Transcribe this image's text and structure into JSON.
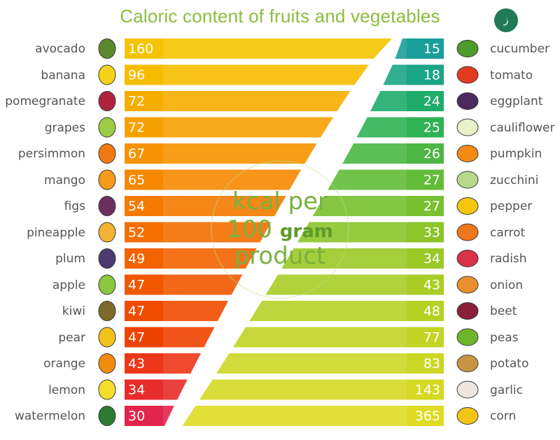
{
  "chart_data": {
    "type": "bar",
    "title": "Caloric content of fruits and vegetables",
    "unit_line1": "kcal per",
    "unit_num": "100",
    "unit_word": "gram",
    "unit_line3": "product",
    "logo_text": "ز",
    "series": [
      {
        "items": [
          {
            "label": "avocado",
            "value": 160,
            "color": "#f5c400",
            "icon": "avocado-icon",
            "iconColor": "#5a8a2b"
          },
          {
            "label": "banana",
            "value": 96,
            "color": "#f6bd00",
            "icon": "banana-icon",
            "iconColor": "#f7d21a"
          },
          {
            "label": "pomegranate",
            "value": 72,
            "color": "#f6ad00",
            "icon": "pomegranate-icon",
            "iconColor": "#b0233c"
          },
          {
            "label": "grapes",
            "value": 72,
            "color": "#f6a000",
            "icon": "grapes-icon",
            "iconColor": "#9ccc43"
          },
          {
            "label": "persimmon",
            "value": 67,
            "color": "#f69300",
            "icon": "persimmon-icon",
            "iconColor": "#f07a12"
          },
          {
            "label": "mango",
            "value": 65,
            "color": "#f68800",
            "icon": "mango-icon",
            "iconColor": "#f59a1a"
          },
          {
            "label": "figs",
            "value": 54,
            "color": "#f57a00",
            "icon": "fig-icon",
            "iconColor": "#6b2f5e"
          },
          {
            "label": "pineapple",
            "value": 52,
            "color": "#f46f00",
            "icon": "pineapple-icon",
            "iconColor": "#f2b233"
          },
          {
            "label": "plum",
            "value": 49,
            "color": "#f36300",
            "icon": "plum-icon",
            "iconColor": "#4b3a6e"
          },
          {
            "label": "apple",
            "value": 47,
            "color": "#f25700",
            "icon": "apple-icon",
            "iconColor": "#8dc63f"
          },
          {
            "label": "kiwi",
            "value": 47,
            "color": "#f04c00",
            "icon": "kiwi-icon",
            "iconColor": "#7d6a2a"
          },
          {
            "label": "pear",
            "value": 47,
            "color": "#ee4200",
            "icon": "pear-icon",
            "iconColor": "#f2c21c"
          },
          {
            "label": "orange",
            "value": 43,
            "color": "#ec3718",
            "icon": "orange-icon",
            "iconColor": "#f38b10"
          },
          {
            "label": "lemon",
            "value": 34,
            "color": "#e82b2b",
            "icon": "lemon-icon",
            "iconColor": "#f7de2a"
          },
          {
            "label": "watermelon",
            "value": 30,
            "color": "#e2254a",
            "icon": "watermelon-icon",
            "iconColor": "#2c7a36"
          }
        ]
      },
      {
        "items": [
          {
            "label": "cucumber",
            "value": 15,
            "color": "#1a9e99",
            "icon": "cucumber-icon",
            "iconColor": "#4e9a2a"
          },
          {
            "label": "tomato",
            "value": 18,
            "color": "#1aa584",
            "icon": "tomato-icon",
            "iconColor": "#e23a1f"
          },
          {
            "label": "eggplant",
            "value": 24,
            "color": "#1fac6b",
            "icon": "eggplant-icon",
            "iconColor": "#4b2a5e"
          },
          {
            "label": "cauliflower",
            "value": 25,
            "color": "#31b255",
            "icon": "cauliflower-icon",
            "iconColor": "#e9f2c9"
          },
          {
            "label": "pumpkin",
            "value": 26,
            "color": "#4cb744",
            "icon": "pumpkin-icon",
            "iconColor": "#f28a14"
          },
          {
            "label": "zucchini",
            "value": 27,
            "color": "#63bc38",
            "icon": "zucchini-icon",
            "iconColor": "#b8d98a"
          },
          {
            "label": "pepper",
            "value": 27,
            "color": "#78c02f",
            "icon": "pepper-icon",
            "iconColor": "#f5c60d"
          },
          {
            "label": "carrot",
            "value": 33,
            "color": "#8bc52a",
            "icon": "carrot-icon",
            "iconColor": "#f0771c"
          },
          {
            "label": "radish",
            "value": 34,
            "color": "#9bc927",
            "icon": "radish-icon",
            "iconColor": "#d8334a"
          },
          {
            "label": "onion",
            "value": 43,
            "color": "#a9cd26",
            "icon": "onion-icon",
            "iconColor": "#e8902f"
          },
          {
            "label": "beet",
            "value": 48,
            "color": "#b6d126",
            "icon": "beet-icon",
            "iconColor": "#8a1f3c"
          },
          {
            "label": "peas",
            "value": 77,
            "color": "#c2d425",
            "icon": "peas-icon",
            "iconColor": "#6fb52c"
          },
          {
            "label": "potato",
            "value": 83,
            "color": "#ccd725",
            "icon": "potato-icon",
            "iconColor": "#c99545"
          },
          {
            "label": "garlic",
            "value": 143,
            "color": "#d6d924",
            "icon": "garlic-icon",
            "iconColor": "#ece6de"
          },
          {
            "label": "corn",
            "value": 365,
            "color": "#dedb22",
            "icon": "corn-icon",
            "iconColor": "#f5c515"
          }
        ]
      }
    ]
  }
}
